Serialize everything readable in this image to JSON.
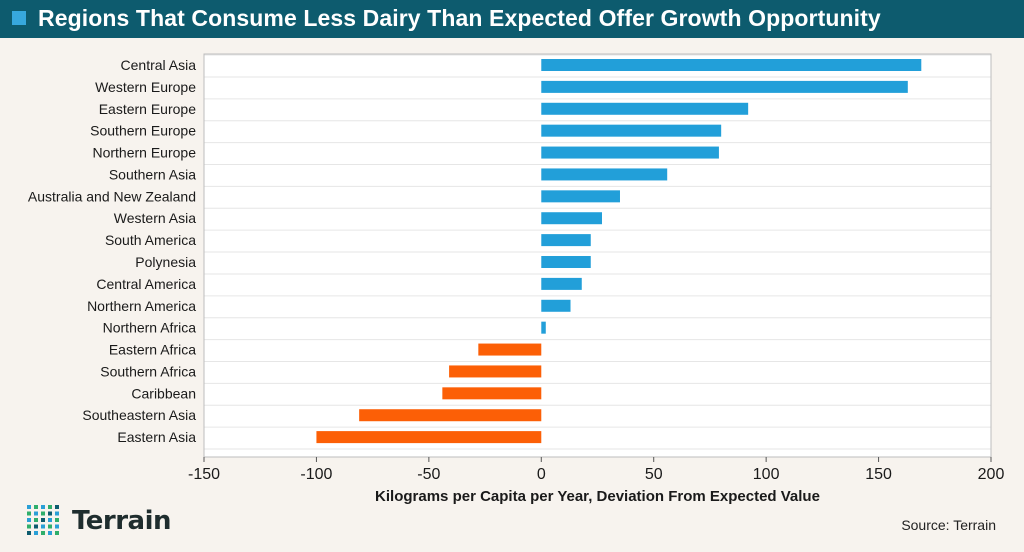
{
  "header": {
    "title": "Regions That Consume Less Dairy Than Expected Offer Growth Opportunity",
    "accent_color": "#37a8dd",
    "bg_color": "#0d5b6e"
  },
  "chart_data": {
    "type": "bar",
    "orientation": "horizontal",
    "categories": [
      "Central Asia",
      "Western Europe",
      "Eastern Europe",
      "Southern Europe",
      "Northern Europe",
      "Southern Asia",
      "Australia and New Zealand",
      "Western Asia",
      "South America",
      "Polynesia",
      "Central America",
      "Northern America",
      "Northern Africa",
      "Eastern Africa",
      "Southern Africa",
      "Caribbean",
      "Southeastern Asia",
      "Eastern Asia"
    ],
    "values": [
      169,
      163,
      92,
      80,
      79,
      56,
      35,
      27,
      22,
      22,
      18,
      13,
      2,
      -28,
      -41,
      -44,
      -81,
      -100
    ],
    "xlabel": "Kilograms per Capita per Year, Deviation From Expected Value",
    "xlim": [
      -150,
      200
    ],
    "xticks": [
      "-150",
      "-100",
      "-50",
      "0",
      "50",
      "100",
      "150",
      "200"
    ],
    "xtick_values": [
      -150,
      -100,
      -50,
      0,
      50,
      100,
      150,
      200
    ],
    "positive_color": "#229fd9",
    "negative_color": "#fc5f06",
    "grid": true
  },
  "footer": {
    "brand": "Terrain",
    "source": "Source: Terrain"
  }
}
